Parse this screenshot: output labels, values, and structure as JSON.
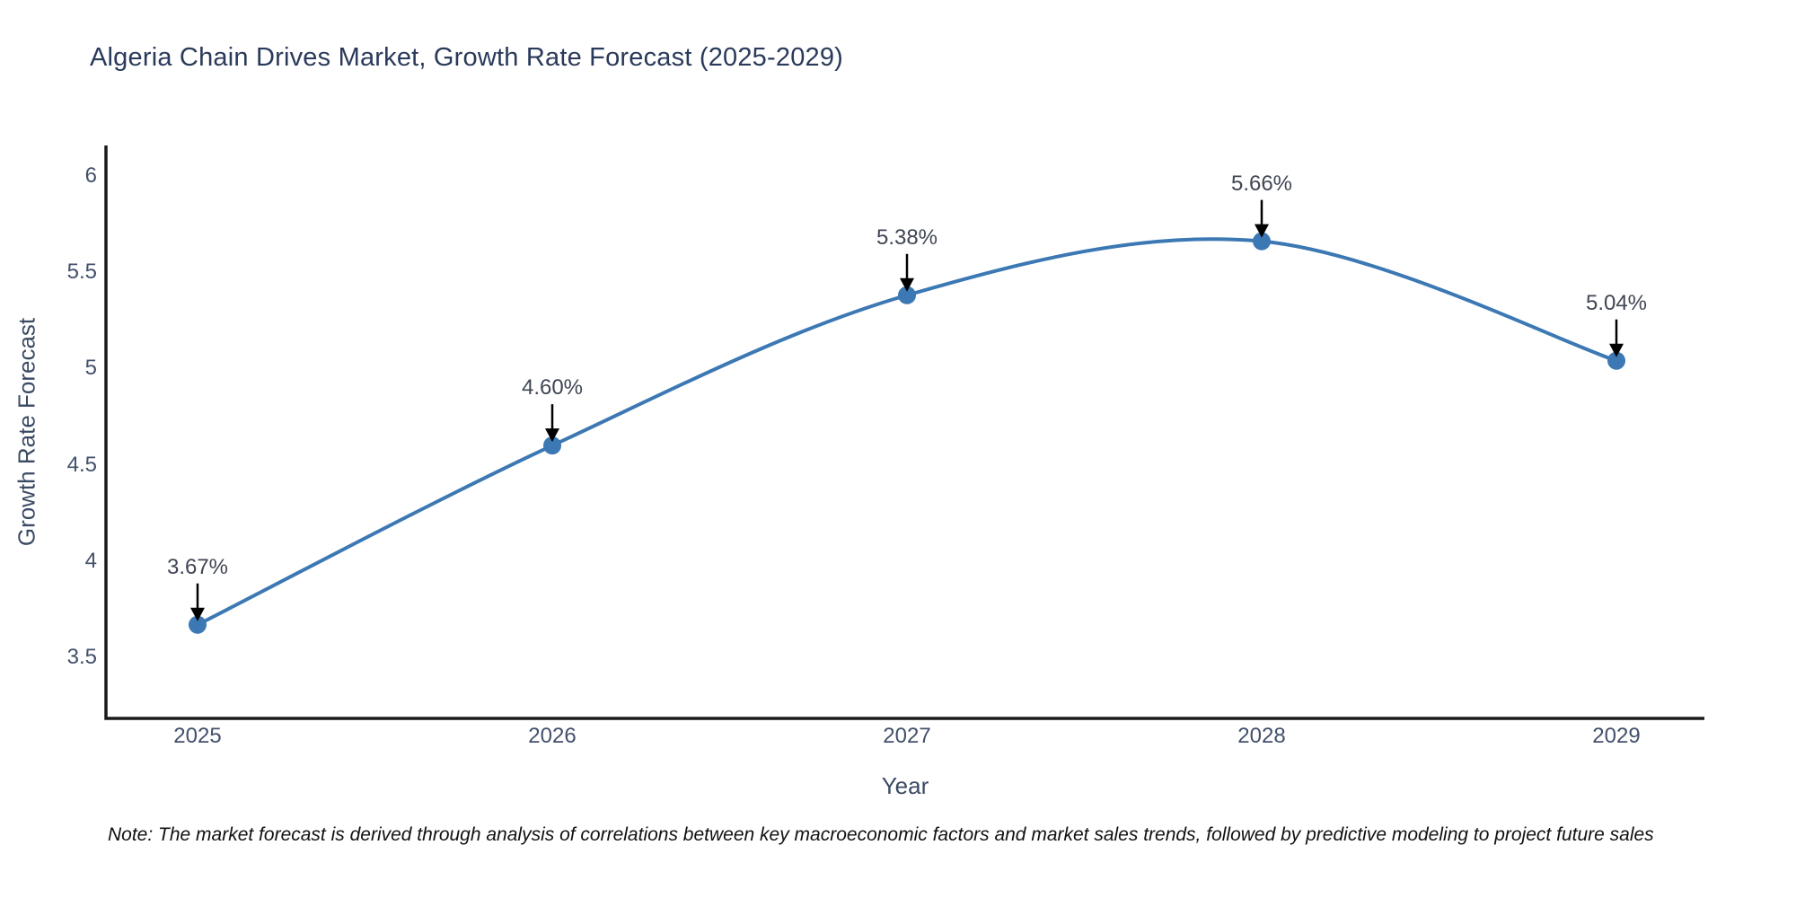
{
  "title": "Algeria Chain Drives Market, Growth Rate Forecast (2025-2029)",
  "note": "Note: The market forecast is derived through analysis of correlations between key macroeconomic factors and market sales trends, followed by predictive modeling to project future sales",
  "chart_data": {
    "type": "line",
    "title": "Algeria Chain Drives Market, Growth Rate Forecast (2025-2029)",
    "xlabel": "Year",
    "ylabel": "Growth Rate Forecast",
    "x": [
      2025,
      2026,
      2027,
      2028,
      2029
    ],
    "y": [
      3.67,
      4.6,
      5.38,
      5.66,
      5.04
    ],
    "point_labels": [
      "3.67%",
      "4.60%",
      "5.38%",
      "5.66%",
      "5.04%"
    ],
    "xtick_labels": [
      "2025",
      "2026",
      "2027",
      "2028",
      "2029"
    ],
    "ytick_values": [
      3.5,
      4,
      4.5,
      5,
      5.5,
      6
    ],
    "ytick_labels": [
      "3.5",
      "4",
      "4.5",
      "5",
      "5.5",
      "6"
    ],
    "ylim": [
      3.184,
      6.157
    ],
    "line_shape": "spline",
    "grid": false,
    "legend": null,
    "colors": {
      "line": "#3c78b3",
      "marker": "#3c78b3",
      "arrow": "#000000",
      "axis": "#1a1a1a",
      "title_text": "#2a3a5a",
      "tick_text": "#42506b",
      "annotation_text": "#3f4654",
      "background": "#ffffff"
    }
  }
}
